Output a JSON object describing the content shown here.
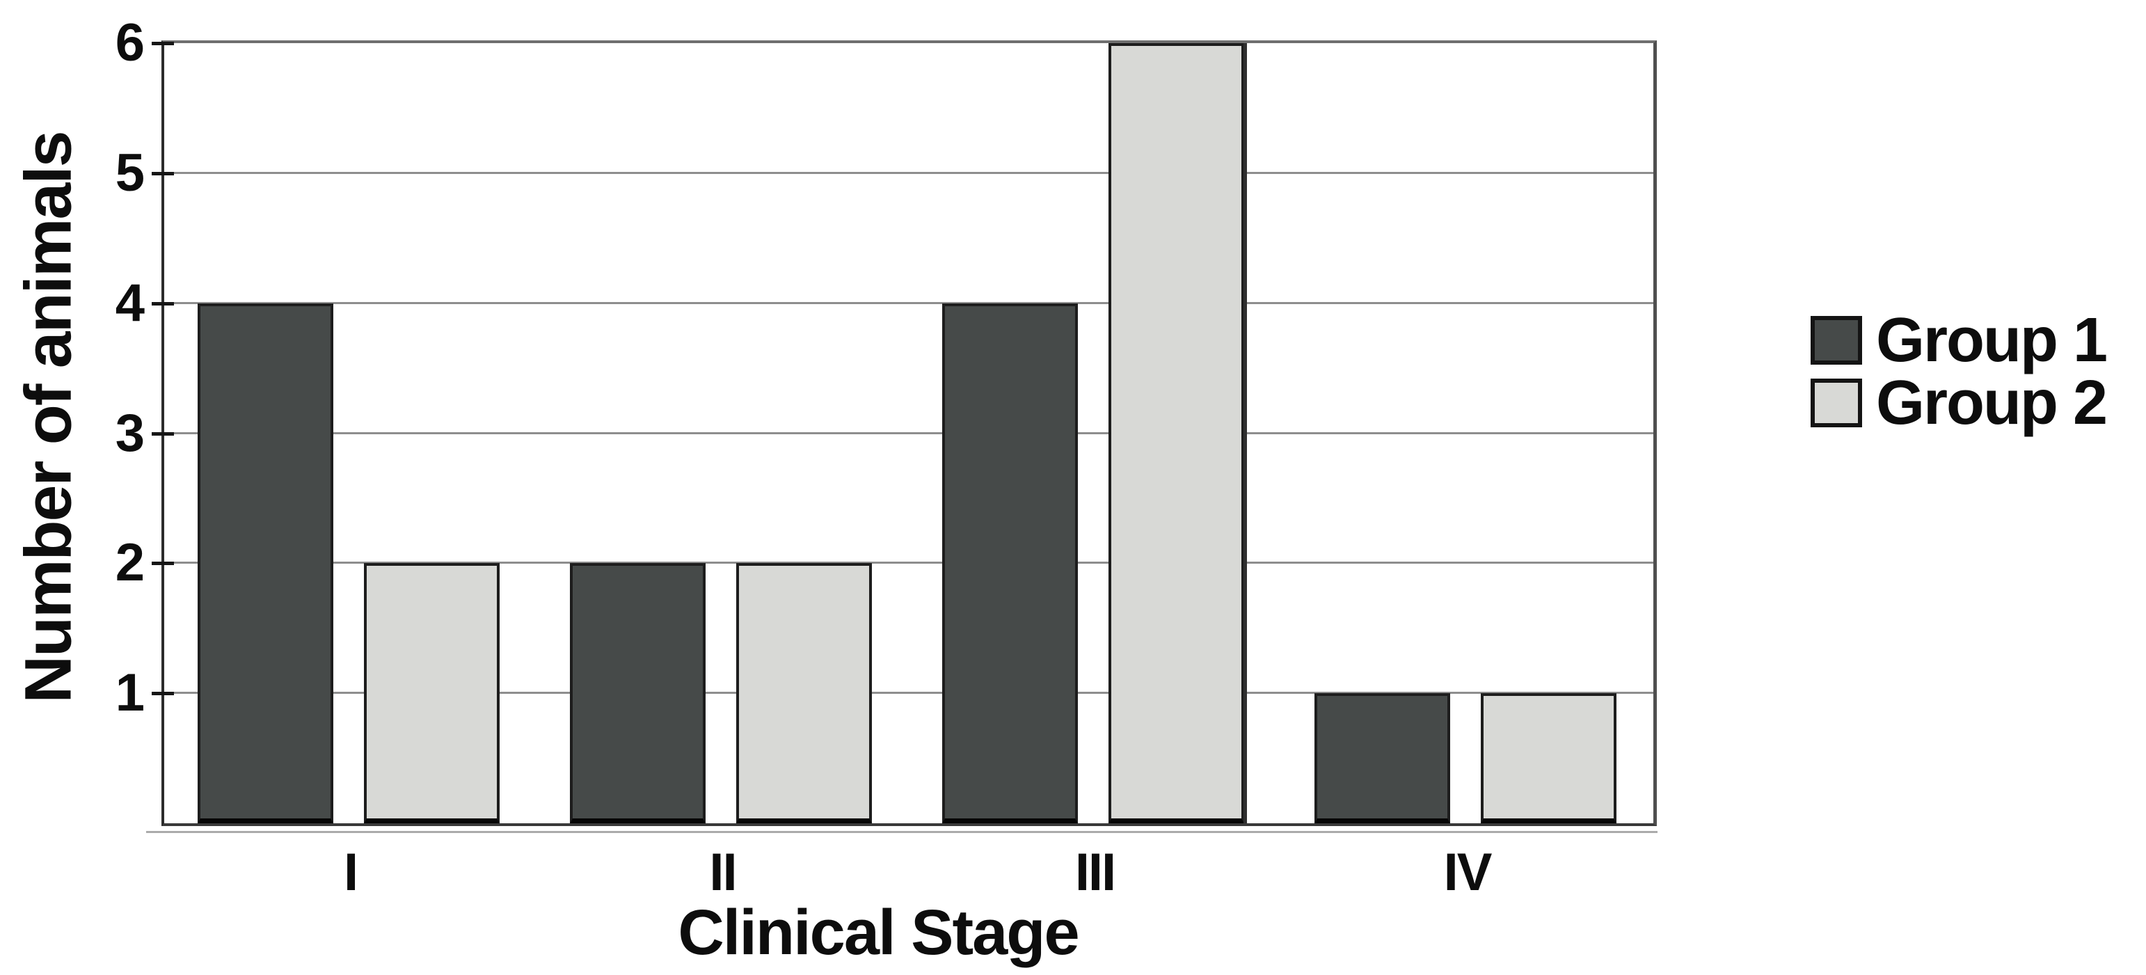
{
  "chart_data": {
    "type": "bar",
    "categories": [
      "I",
      "II",
      "III",
      "IV"
    ],
    "series": [
      {
        "name": "Group 1",
        "values": [
          4,
          2,
          4,
          1
        ],
        "color": "#464a49"
      },
      {
        "name": "Group 2",
        "values": [
          2,
          2,
          6,
          1
        ],
        "color": "#d8d9d6"
      }
    ],
    "title": "",
    "xlabel": "Clinical Stage",
    "ylabel": "Number of animals",
    "ylim": [
      0,
      6
    ],
    "yticks": [
      "1",
      "2",
      "3",
      "4",
      "5",
      "6"
    ],
    "grid": "horizontal",
    "legend_position": "right-outside",
    "colors": {
      "bar_border": "#1d1d1d",
      "gridline": "#8e8e8e",
      "axis": "#2b2b2b",
      "text": "#0d0d0d",
      "background": "#ffffff"
    }
  }
}
